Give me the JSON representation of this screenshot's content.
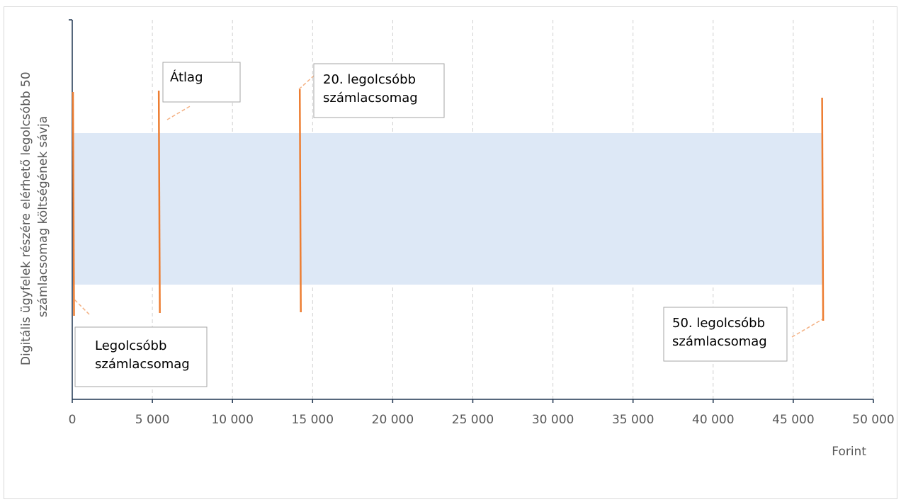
{
  "chart_data": {
    "type": "range-band",
    "x": {
      "label": "Forint",
      "min": 0,
      "max": 50000,
      "ticks": [
        0,
        5000,
        10000,
        15000,
        20000,
        25000,
        30000,
        35000,
        40000,
        45000,
        50000
      ],
      "tick_labels": [
        "0",
        "5 000",
        "10 000",
        "15 000",
        "20 000",
        "25 000",
        "30 000",
        "35 000",
        "40 000",
        "45 000",
        "50 000"
      ],
      "grid": "vertical-dashed"
    },
    "ylabel_lines": [
      "Digitális ügyfelek részére elérhető legolcsóbb 50",
      "számlacsomag költségének sávja"
    ],
    "band": {
      "from": 0,
      "to": 46800,
      "color": "#dde8f6"
    },
    "markers": [
      {
        "value": 0,
        "label_lines": [
          "Legolcsóbb",
          "számlacsomag"
        ],
        "color": "#ed7d31"
      },
      {
        "value": 5400,
        "label_lines": [
          "Átlag"
        ],
        "color": "#ed7d31"
      },
      {
        "value": 14200,
        "label_lines": [
          "20. legolcsóbb",
          "számlacsomag"
        ],
        "color": "#ed7d31"
      },
      {
        "value": 46800,
        "label_lines": [
          "50. legolcsóbb",
          "számlacsomag"
        ],
        "color": "#ed7d31"
      }
    ],
    "colors": {
      "axis": "#1f3550",
      "grid": "#d0d0d0",
      "leader": "#f4b183",
      "callout_border": "#a6a6a6"
    }
  }
}
